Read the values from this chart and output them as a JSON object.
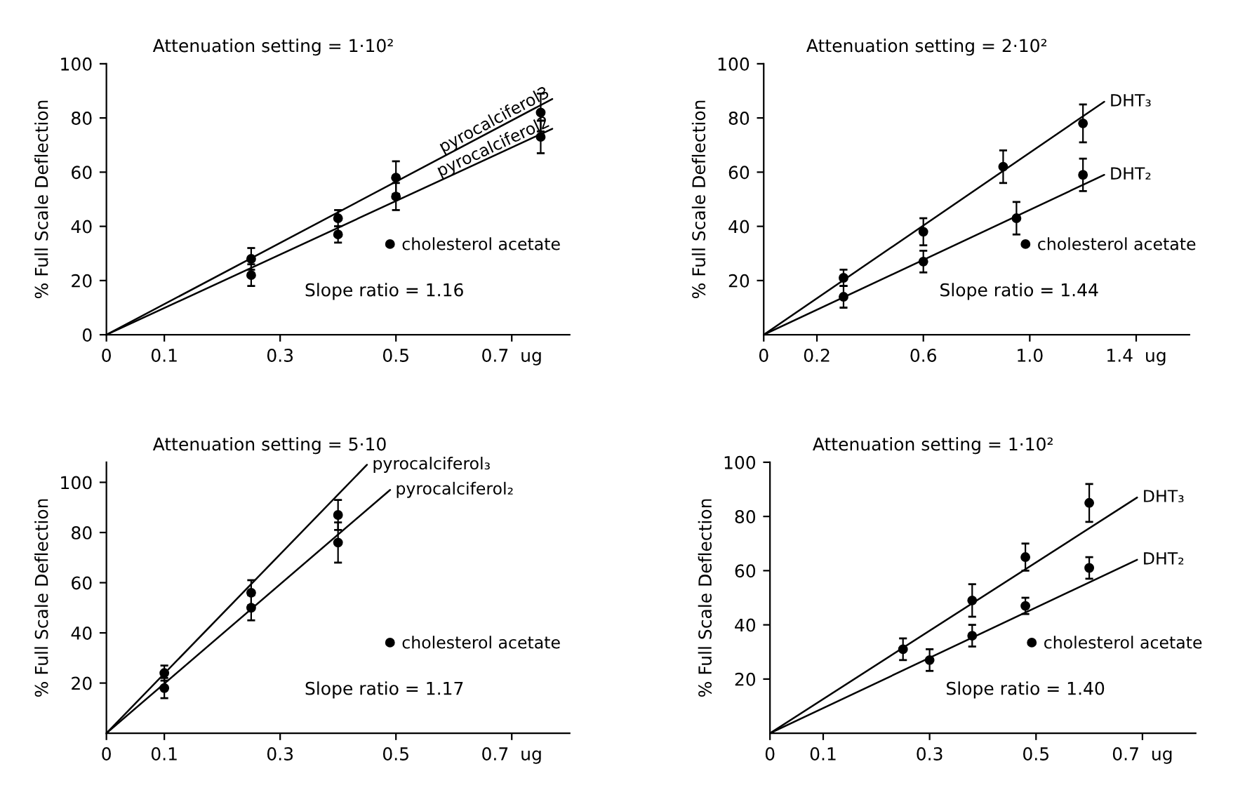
{
  "chart_data": [
    {
      "type": "scatter",
      "title": "Attenuation setting = 1·10²",
      "ylabel": "% Full Scale Deflection",
      "marker": "circle",
      "legend": "right",
      "annotations": [
        "Slope ratio = 1.16"
      ],
      "xlim": [
        0,
        0.8
      ],
      "xticks": [
        0,
        0.1,
        0.3,
        0.5,
        {
          "value": 0.7,
          "label": "0.7  ug"
        }
      ],
      "ylim": [
        0,
        100
      ],
      "yticks": [
        0,
        20,
        40,
        60,
        80,
        100
      ],
      "series": [
        {
          "name": "cholesterol acetate",
          "color": "#000000",
          "x": [
            0.25,
            0.4,
            0.5,
            0.75
          ],
          "values": [
            28,
            43,
            58,
            82
          ],
          "errors": [
            4,
            3,
            6,
            7
          ]
        },
        {
          "color": "#000000",
          "x": [
            0.25,
            0.4,
            0.5,
            0.75
          ],
          "values": [
            22,
            37,
            51,
            73
          ],
          "errors": [
            4,
            3,
            5,
            6
          ]
        },
        {
          "type": "line",
          "marker": "none",
          "name": "pyrocalciferol3",
          "color": "#000000",
          "x": [
            0,
            0.77
          ],
          "values": [
            0,
            87
          ]
        },
        {
          "type": "line",
          "marker": "none",
          "name": "pyrocalciferol2",
          "color": "#000000",
          "x": [
            0,
            0.77
          ],
          "values": [
            0,
            76
          ]
        }
      ]
    },
    {
      "type": "scatter",
      "title": "Attenuation setting = 2·10²",
      "ylabel": "% Full Scale Deflection",
      "marker": "circle",
      "legend": "right",
      "annotations": [
        "Slope ratio = 1.44"
      ],
      "xlim": [
        0,
        1.6
      ],
      "xticks": [
        0,
        0.2,
        0.6,
        {
          "value": 1.0,
          "label": "1.0"
        },
        {
          "value": 1.4,
          "label": "1.4  ug"
        }
      ],
      "ylim": [
        0,
        100
      ],
      "yticks": [
        20,
        40,
        60,
        80,
        100
      ],
      "series": [
        {
          "name": "cholesterol acetate",
          "color": "#000000",
          "x": [
            0.3,
            0.6,
            0.9,
            1.2
          ],
          "values": [
            21,
            38,
            62,
            78
          ],
          "errors": [
            3,
            5,
            6,
            7
          ]
        },
        {
          "color": "#000000",
          "x": [
            0.3,
            0.6,
            0.95,
            1.2
          ],
          "values": [
            14,
            27,
            43,
            59
          ],
          "errors": [
            4,
            4,
            6,
            6
          ]
        },
        {
          "type": "line",
          "marker": "none",
          "name": "DHT₃",
          "color": "#000000",
          "x": [
            0,
            1.28
          ],
          "values": [
            0,
            86
          ]
        },
        {
          "type": "line",
          "marker": "none",
          "name": "DHT₂",
          "color": "#000000",
          "x": [
            0,
            1.28
          ],
          "values": [
            0,
            59
          ]
        }
      ]
    },
    {
      "type": "scatter",
      "title": "Attenuation setting = 5·10",
      "ylabel": "% Full Scale Deflection",
      "marker": "circle",
      "legend": "right",
      "annotations": [
        "Slope ratio = 1.17"
      ],
      "xlim": [
        0,
        0.8
      ],
      "xticks": [
        0,
        0.1,
        0.3,
        0.5,
        {
          "value": 0.7,
          "label": "0.7  ug"
        }
      ],
      "ylim": [
        0,
        108
      ],
      "yticks": [
        20,
        40,
        60,
        80,
        100
      ],
      "series": [
        {
          "name": "cholesterol acetate",
          "color": "#000000",
          "x": [
            0.1,
            0.25,
            0.4
          ],
          "values": [
            24,
            56,
            87
          ],
          "errors": [
            3,
            5,
            6
          ]
        },
        {
          "color": "#000000",
          "x": [
            0.1,
            0.25,
            0.4
          ],
          "values": [
            18,
            50,
            76
          ],
          "errors": [
            4,
            5,
            8
          ]
        },
        {
          "type": "line",
          "marker": "none",
          "name": "pyrocalciferol₃",
          "color": "#000000",
          "x": [
            0,
            0.45
          ],
          "values": [
            0,
            107
          ]
        },
        {
          "type": "line",
          "marker": "none",
          "name": "pyrocalciferol₂",
          "color": "#000000",
          "x": [
            0,
            0.49
          ],
          "values": [
            0,
            97
          ]
        }
      ]
    },
    {
      "type": "scatter",
      "title": "Attenuation setting = 1·10²",
      "ylabel": "% Full Scale Deflection",
      "marker": "circle",
      "legend": "right",
      "annotations": [
        "Slope ratio = 1.40"
      ],
      "xlim": [
        0,
        0.8
      ],
      "xticks": [
        0,
        0.1,
        0.3,
        0.5,
        {
          "value": 0.7,
          "label": "0.7  ug"
        }
      ],
      "ylim": [
        0,
        100
      ],
      "yticks": [
        20,
        40,
        60,
        80,
        100
      ],
      "series": [
        {
          "name": "cholesterol acetate",
          "color": "#000000",
          "x": [
            0.25,
            0.38,
            0.48,
            0.6
          ],
          "values": [
            31,
            49,
            65,
            85
          ],
          "errors": [
            4,
            6,
            5,
            7
          ]
        },
        {
          "color": "#000000",
          "x": [
            0.3,
            0.38,
            0.48,
            0.6
          ],
          "values": [
            27,
            36,
            47,
            61
          ],
          "errors": [
            4,
            4,
            3,
            4
          ]
        },
        {
          "type": "line",
          "marker": "none",
          "name": "DHT₃",
          "color": "#000000",
          "x": [
            0,
            0.69
          ],
          "values": [
            0,
            87
          ]
        },
        {
          "type": "line",
          "marker": "none",
          "name": "DHT₂",
          "color": "#000000",
          "x": [
            0,
            0.69
          ],
          "values": [
            0,
            64
          ]
        }
      ]
    }
  ]
}
